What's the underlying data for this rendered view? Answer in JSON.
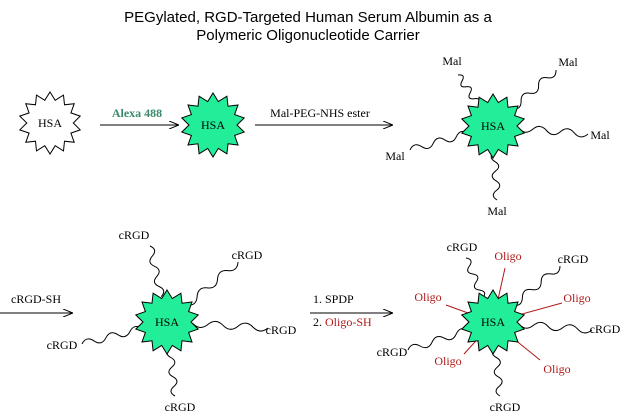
{
  "title": {
    "line1": "PEGylated, RGD-Targeted Human Serum Albumin as a",
    "line2": "Polymeric  Oligonucleotide Carrier"
  },
  "molecules": [
    {
      "label": "HSA"
    },
    {
      "label": "HSA"
    },
    {
      "label": "HSA",
      "arms": [
        "Mal",
        "Mal",
        "Mal",
        "Mal",
        "Mal"
      ]
    },
    {
      "label": "HSA",
      "arms": [
        "cRGD",
        "cRGD",
        "cRGD",
        "cRGD",
        "cRGD"
      ]
    },
    {
      "label": "HSA",
      "arms": [
        "cRGD",
        "cRGD",
        "cRGD",
        "cRGD",
        "cRGD"
      ],
      "oligos": [
        "Oligo",
        "Oligo",
        "Oligo",
        "Oligo",
        "Oligo"
      ]
    }
  ],
  "arrows": [
    {
      "label": "Alexa 488"
    },
    {
      "label": "Mal-PEG-NHS ester"
    },
    {
      "label": "cRGD-SH"
    },
    {
      "steps": [
        {
          "number": "1.",
          "text": "SPDP"
        },
        {
          "number": "2.",
          "text": "Oligo-SH"
        }
      ]
    }
  ]
}
